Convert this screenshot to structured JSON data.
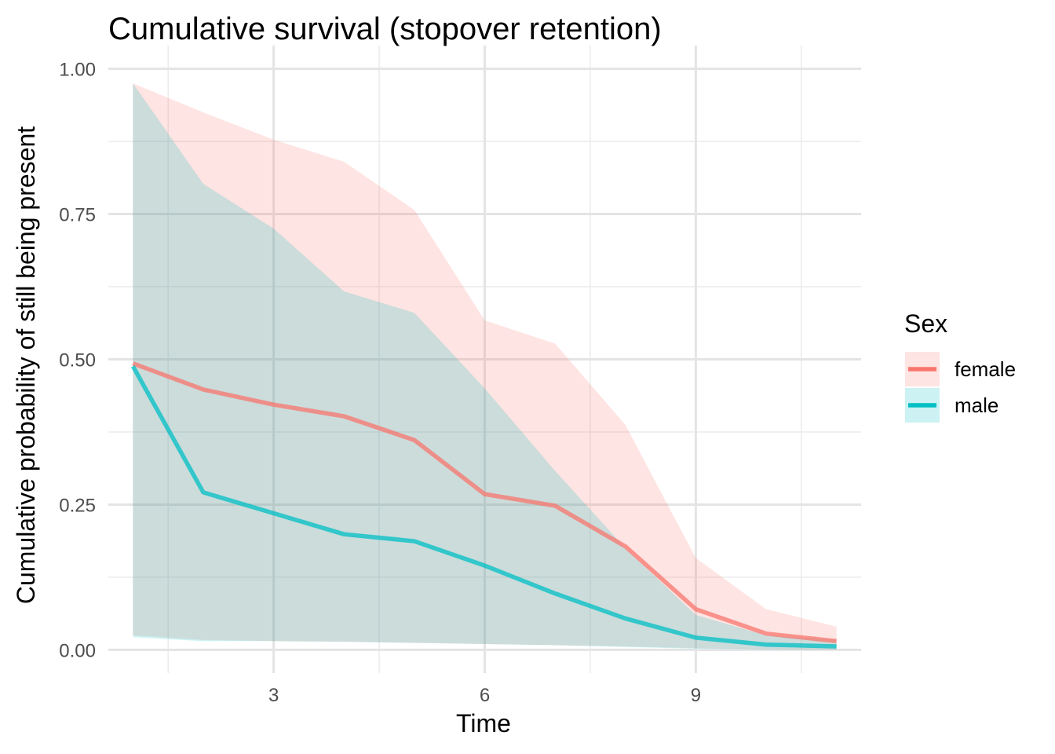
{
  "chart_data": {
    "type": "line",
    "title": "Cumulative survival (stopover retention)",
    "xlabel": "Time",
    "ylabel": "Cumulative probability of still being present",
    "xlim": [
      0.65,
      11.35
    ],
    "ylim": [
      -0.04,
      1.04
    ],
    "x_ticks": [
      3,
      6,
      9
    ],
    "x_tick_labels": [
      "3",
      "6",
      "9"
    ],
    "x_minor_ticks": [
      1.5,
      4.5,
      7.5,
      10.5
    ],
    "y_ticks": [
      0,
      0.25,
      0.5,
      0.75,
      1
    ],
    "y_tick_labels": [
      "0.00",
      "0.25",
      "0.50",
      "0.75",
      "1.00"
    ],
    "y_minor_ticks": [
      0.125,
      0.375,
      0.625,
      0.875
    ],
    "grid": true,
    "legend": {
      "title": "Sex",
      "position": "right"
    },
    "x": [
      1,
      2,
      3,
      4,
      5,
      6,
      7,
      8,
      9,
      10,
      11
    ],
    "series": [
      {
        "name": "female",
        "color": "#F8766D",
        "values": [
          0.493,
          0.448,
          0.422,
          0.402,
          0.361,
          0.268,
          0.248,
          0.178,
          0.07,
          0.028,
          0.015
        ],
        "lower": [
          0.025,
          0.017,
          0.015,
          0.014,
          0.012,
          0.01,
          0.008,
          0.006,
          0.003,
          0.001,
          0.0005
        ],
        "upper": [
          0.975,
          0.925,
          0.878,
          0.84,
          0.757,
          0.567,
          0.527,
          0.387,
          0.158,
          0.07,
          0.04
        ]
      },
      {
        "name": "male",
        "color": "#00BFC4",
        "values": [
          0.488,
          0.271,
          0.235,
          0.199,
          0.187,
          0.145,
          0.097,
          0.054,
          0.021,
          0.009,
          0.006
        ],
        "lower": [
          0.022,
          0.015,
          0.015,
          0.014,
          0.012,
          0.01,
          0.008,
          0.005,
          0.002,
          0.001,
          0.0005
        ],
        "upper": [
          0.975,
          0.802,
          0.725,
          0.617,
          0.58,
          0.45,
          0.308,
          0.175,
          0.06,
          0.025,
          0.018
        ]
      }
    ]
  }
}
